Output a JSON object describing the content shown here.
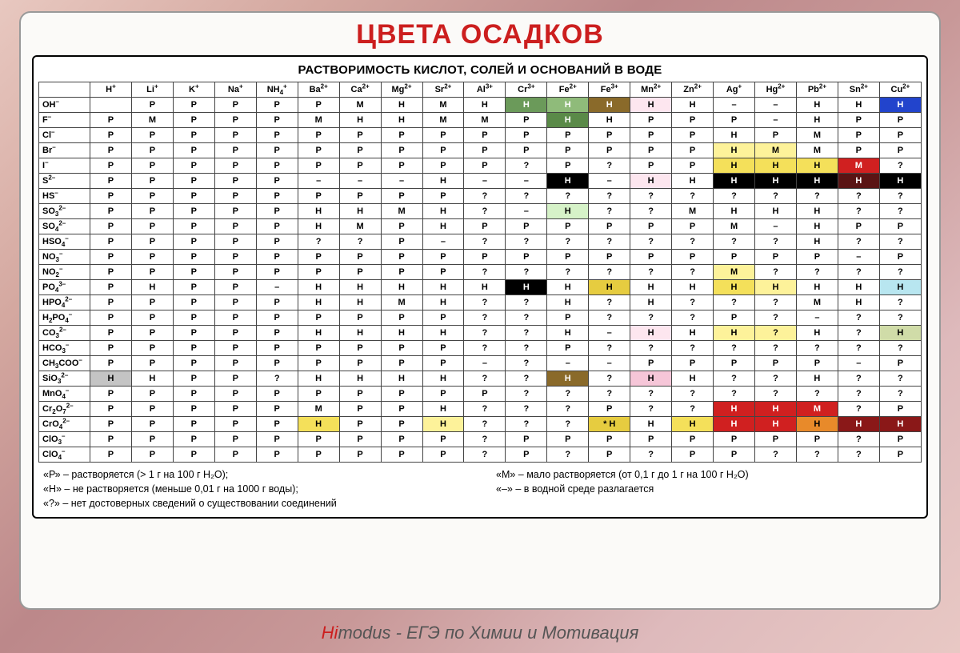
{
  "title": "ЦВЕТА ОСАДКОВ",
  "table_title": "РАСТВОРИМОСТЬ КИСЛОТ, СОЛЕЙ И ОСНОВАНИЙ В ВОДЕ",
  "footer_hi": "Hi",
  "footer_rest": "modus - ЕГЭ по Химии и Мотивация",
  "legend": {
    "left": [
      "«Р» – растворяется (> 1 г на 100 г H₂O);",
      "«Н» – не растворяется (меньше 0,01 г на 1000 г воды);",
      "«?» – нет достоверных сведений о существовании соединений"
    ],
    "right": [
      "«М» – мало растворяется (от 0,1 г до 1 г на 100 г H₂O)",
      "«–» – в водной среде разлагается"
    ]
  },
  "cations": [
    {
      "l": "H",
      "c": "+"
    },
    {
      "l": "Li",
      "c": "+"
    },
    {
      "l": "K",
      "c": "+"
    },
    {
      "l": "Na",
      "c": "+"
    },
    {
      "l": "NH",
      "s": "4",
      "c": "+"
    },
    {
      "l": "Ba",
      "c": "2+"
    },
    {
      "l": "Ca",
      "c": "2+"
    },
    {
      "l": "Mg",
      "c": "2+"
    },
    {
      "l": "Sr",
      "c": "2+"
    },
    {
      "l": "Al",
      "c": "3+"
    },
    {
      "l": "Cr",
      "c": "3+"
    },
    {
      "l": "Fe",
      "c": "2+"
    },
    {
      "l": "Fe",
      "c": "3+"
    },
    {
      "l": "Mn",
      "c": "2+"
    },
    {
      "l": "Zn",
      "c": "2+"
    },
    {
      "l": "Ag",
      "c": "+"
    },
    {
      "l": "Hg",
      "c": "2+"
    },
    {
      "l": "Pb",
      "c": "2+"
    },
    {
      "l": "Sn",
      "c": "2+"
    },
    {
      "l": "Cu",
      "c": "2+"
    }
  ],
  "anions": [
    {
      "l": "OH",
      "c": "–"
    },
    {
      "l": "F",
      "c": "–"
    },
    {
      "l": "Cl",
      "c": "–"
    },
    {
      "l": "Br",
      "c": "–"
    },
    {
      "l": "I",
      "c": "–"
    },
    {
      "l": "S",
      "c": "2–"
    },
    {
      "l": "HS",
      "c": "–"
    },
    {
      "l": "SO",
      "s": "3",
      "c": "2–"
    },
    {
      "l": "SO",
      "s": "4",
      "c": "2–"
    },
    {
      "l": "HSO",
      "s": "4",
      "c": "–"
    },
    {
      "l": "NO",
      "s": "3",
      "c": "–"
    },
    {
      "l": "NO",
      "s": "2",
      "c": "–"
    },
    {
      "l": "PO",
      "s": "4",
      "c": "3–"
    },
    {
      "l": "HPO",
      "s": "4",
      "c": "2–"
    },
    {
      "l": "H",
      "s": "2",
      "l2": "PO",
      "s2": "4",
      "c": "–"
    },
    {
      "l": "CO",
      "s": "3",
      "c": "2–"
    },
    {
      "l": "HCO",
      "s": "3",
      "c": "–"
    },
    {
      "l": "CH",
      "s": "3",
      "l2": "COO",
      "c": "–"
    },
    {
      "l": "SiO",
      "s": "3",
      "c": "2–"
    },
    {
      "l": "MnO",
      "s": "4",
      "c": "–"
    },
    {
      "l": "Cr",
      "s": "2",
      "l2": "O",
      "s2": "7",
      "c": "2–"
    },
    {
      "l": "CrO",
      "s": "4",
      "c": "2–"
    },
    {
      "l": "ClO",
      "s": "3",
      "c": "–"
    },
    {
      "l": "ClO",
      "s": "4",
      "c": "–"
    }
  ],
  "colors": {
    "none": null,
    "gn1": "#6b9a5a",
    "gn2": "#8fbb7a",
    "gn3": "#5a8a48",
    "brn": "#8a6a2a",
    "pnk": "#f6c6d8",
    "lpk": "#fde6ef",
    "blu": "#2244cc",
    "blk": "#000000",
    "wht": "#ffffff",
    "ylw": "#f4e05a",
    "lyl": "#fdf29a",
    "dyl": "#e6cc40",
    "ora": "#e88a2a",
    "red": "#d02020",
    "drd": "#8a1818",
    "mar": "#5a1414",
    "gry": "#c4c4c4",
    "lgn": "#d6f2c8",
    "cyn": "#b8e6f0",
    "lgr": "#d0dca8"
  },
  "cells": [
    [
      [
        ""
      ],
      [
        "Р"
      ],
      [
        "Р"
      ],
      [
        "Р"
      ],
      [
        "Р"
      ],
      [
        "Р"
      ],
      [
        "М"
      ],
      [
        "Н"
      ],
      [
        "М"
      ],
      [
        "Н"
      ],
      [
        "Н",
        "gn1",
        "w"
      ],
      [
        "Н",
        "gn2",
        "w"
      ],
      [
        "Н",
        "brn",
        "w"
      ],
      [
        "Н",
        "lpk"
      ],
      [
        "Н"
      ],
      [
        "–"
      ],
      [
        "–"
      ],
      [
        "Н"
      ],
      [
        "Н"
      ],
      [
        "Н",
        "blu",
        "w"
      ]
    ],
    [
      [
        "Р"
      ],
      [
        "М"
      ],
      [
        "Р"
      ],
      [
        "Р"
      ],
      [
        "Р"
      ],
      [
        "М"
      ],
      [
        "Н"
      ],
      [
        "Н"
      ],
      [
        "М"
      ],
      [
        "М"
      ],
      [
        "Р"
      ],
      [
        "Н",
        "gn3",
        "w"
      ],
      [
        "Н"
      ],
      [
        "Р"
      ],
      [
        "Р"
      ],
      [
        "Р"
      ],
      [
        "–"
      ],
      [
        "Н"
      ],
      [
        "Р"
      ],
      [
        "Р"
      ]
    ],
    [
      [
        "Р"
      ],
      [
        "Р"
      ],
      [
        "Р"
      ],
      [
        "Р"
      ],
      [
        "Р"
      ],
      [
        "Р"
      ],
      [
        "Р"
      ],
      [
        "Р"
      ],
      [
        "Р"
      ],
      [
        "Р"
      ],
      [
        "Р"
      ],
      [
        "Р"
      ],
      [
        "Р"
      ],
      [
        "Р"
      ],
      [
        "Р"
      ],
      [
        "Н"
      ],
      [
        "Р"
      ],
      [
        "М"
      ],
      [
        "Р"
      ],
      [
        "Р"
      ]
    ],
    [
      [
        "Р"
      ],
      [
        "Р"
      ],
      [
        "Р"
      ],
      [
        "Р"
      ],
      [
        "Р"
      ],
      [
        "Р"
      ],
      [
        "Р"
      ],
      [
        "Р"
      ],
      [
        "Р"
      ],
      [
        "Р"
      ],
      [
        "Р"
      ],
      [
        "Р"
      ],
      [
        "Р"
      ],
      [
        "Р"
      ],
      [
        "Р"
      ],
      [
        "Н",
        "lyl"
      ],
      [
        "М",
        "lyl"
      ],
      [
        "М"
      ],
      [
        "Р"
      ],
      [
        "Р"
      ]
    ],
    [
      [
        "Р"
      ],
      [
        "Р"
      ],
      [
        "Р"
      ],
      [
        "Р"
      ],
      [
        "Р"
      ],
      [
        "Р"
      ],
      [
        "Р"
      ],
      [
        "Р"
      ],
      [
        "Р"
      ],
      [
        "Р"
      ],
      [
        "?"
      ],
      [
        "Р"
      ],
      [
        "?"
      ],
      [
        "Р"
      ],
      [
        "Р"
      ],
      [
        "Н",
        "ylw"
      ],
      [
        "Н",
        "ylw"
      ],
      [
        "Н",
        "ylw"
      ],
      [
        "М",
        "red",
        "w"
      ],
      [
        "?"
      ]
    ],
    [
      [
        "Р"
      ],
      [
        "Р"
      ],
      [
        "Р"
      ],
      [
        "Р"
      ],
      [
        "Р"
      ],
      [
        "–"
      ],
      [
        "–"
      ],
      [
        "–"
      ],
      [
        "Н"
      ],
      [
        "–"
      ],
      [
        "–"
      ],
      [
        "Н",
        "blk",
        "w"
      ],
      [
        "–"
      ],
      [
        "Н",
        "lpk"
      ],
      [
        "Н"
      ],
      [
        "Н",
        "blk",
        "w"
      ],
      [
        "Н",
        "blk",
        "w"
      ],
      [
        "Н",
        "blk",
        "w"
      ],
      [
        "Н",
        "mar",
        "w"
      ],
      [
        "Н",
        "blk",
        "w"
      ]
    ],
    [
      [
        "Р"
      ],
      [
        "Р"
      ],
      [
        "Р"
      ],
      [
        "Р"
      ],
      [
        "Р"
      ],
      [
        "Р"
      ],
      [
        "Р"
      ],
      [
        "Р"
      ],
      [
        "Р"
      ],
      [
        "?"
      ],
      [
        "?"
      ],
      [
        "?"
      ],
      [
        "?"
      ],
      [
        "?"
      ],
      [
        "?"
      ],
      [
        "?"
      ],
      [
        "?"
      ],
      [
        "?"
      ],
      [
        "?"
      ],
      [
        "?"
      ]
    ],
    [
      [
        "Р"
      ],
      [
        "Р"
      ],
      [
        "Р"
      ],
      [
        "Р"
      ],
      [
        "Р"
      ],
      [
        "Н"
      ],
      [
        "Н"
      ],
      [
        "М"
      ],
      [
        "Н"
      ],
      [
        "?"
      ],
      [
        "–"
      ],
      [
        "Н",
        "lgn"
      ],
      [
        "?"
      ],
      [
        "?"
      ],
      [
        "М"
      ],
      [
        "Н"
      ],
      [
        "Н"
      ],
      [
        "Н"
      ],
      [
        "?"
      ],
      [
        "?"
      ]
    ],
    [
      [
        "Р"
      ],
      [
        "Р"
      ],
      [
        "Р"
      ],
      [
        "Р"
      ],
      [
        "Р"
      ],
      [
        "Н"
      ],
      [
        "М"
      ],
      [
        "Р"
      ],
      [
        "Н"
      ],
      [
        "Р"
      ],
      [
        "Р"
      ],
      [
        "Р"
      ],
      [
        "Р"
      ],
      [
        "Р"
      ],
      [
        "Р"
      ],
      [
        "М"
      ],
      [
        "–"
      ],
      [
        "Н"
      ],
      [
        "Р"
      ],
      [
        "Р"
      ]
    ],
    [
      [
        "Р"
      ],
      [
        "Р"
      ],
      [
        "Р"
      ],
      [
        "Р"
      ],
      [
        "Р"
      ],
      [
        "?"
      ],
      [
        "?"
      ],
      [
        "Р"
      ],
      [
        "–"
      ],
      [
        "?"
      ],
      [
        "?"
      ],
      [
        "?"
      ],
      [
        "?"
      ],
      [
        "?"
      ],
      [
        "?"
      ],
      [
        "?"
      ],
      [
        "?"
      ],
      [
        "Н"
      ],
      [
        "?"
      ],
      [
        "?"
      ]
    ],
    [
      [
        "Р"
      ],
      [
        "Р"
      ],
      [
        "Р"
      ],
      [
        "Р"
      ],
      [
        "Р"
      ],
      [
        "Р"
      ],
      [
        "Р"
      ],
      [
        "Р"
      ],
      [
        "Р"
      ],
      [
        "Р"
      ],
      [
        "Р"
      ],
      [
        "Р"
      ],
      [
        "Р"
      ],
      [
        "Р"
      ],
      [
        "Р"
      ],
      [
        "Р"
      ],
      [
        "Р"
      ],
      [
        "Р"
      ],
      [
        "–"
      ],
      [
        "Р"
      ]
    ],
    [
      [
        "Р"
      ],
      [
        "Р"
      ],
      [
        "Р"
      ],
      [
        "Р"
      ],
      [
        "Р"
      ],
      [
        "Р"
      ],
      [
        "Р"
      ],
      [
        "Р"
      ],
      [
        "Р"
      ],
      [
        "?"
      ],
      [
        "?"
      ],
      [
        "?"
      ],
      [
        "?"
      ],
      [
        "?"
      ],
      [
        "?"
      ],
      [
        "М",
        "lyl"
      ],
      [
        "?"
      ],
      [
        "?"
      ],
      [
        "?"
      ],
      [
        "?"
      ]
    ],
    [
      [
        "Р"
      ],
      [
        "Н"
      ],
      [
        "Р"
      ],
      [
        "Р"
      ],
      [
        "–"
      ],
      [
        "Н"
      ],
      [
        "Н"
      ],
      [
        "Н"
      ],
      [
        "Н"
      ],
      [
        "Н"
      ],
      [
        "Н",
        "blk",
        "w"
      ],
      [
        "Н"
      ],
      [
        "Н",
        "dyl"
      ],
      [
        "Н"
      ],
      [
        "Н"
      ],
      [
        "Н",
        "ylw"
      ],
      [
        "Н",
        "lyl"
      ],
      [
        "Н"
      ],
      [
        "Н"
      ],
      [
        "Н",
        "cyn"
      ]
    ],
    [
      [
        "Р"
      ],
      [
        "Р"
      ],
      [
        "Р"
      ],
      [
        "Р"
      ],
      [
        "Р"
      ],
      [
        "Н"
      ],
      [
        "Н"
      ],
      [
        "М"
      ],
      [
        "Н"
      ],
      [
        "?"
      ],
      [
        "?"
      ],
      [
        "Н"
      ],
      [
        "?"
      ],
      [
        "Н"
      ],
      [
        "?"
      ],
      [
        "?"
      ],
      [
        "?"
      ],
      [
        "М"
      ],
      [
        "Н"
      ],
      [
        "?"
      ]
    ],
    [
      [
        "Р"
      ],
      [
        "Р"
      ],
      [
        "Р"
      ],
      [
        "Р"
      ],
      [
        "Р"
      ],
      [
        "Р"
      ],
      [
        "Р"
      ],
      [
        "Р"
      ],
      [
        "Р"
      ],
      [
        "?"
      ],
      [
        "?"
      ],
      [
        "Р"
      ],
      [
        "?"
      ],
      [
        "?"
      ],
      [
        "?"
      ],
      [
        "Р"
      ],
      [
        "?"
      ],
      [
        "–"
      ],
      [
        "?"
      ],
      [
        "?"
      ]
    ],
    [
      [
        "Р"
      ],
      [
        "Р"
      ],
      [
        "Р"
      ],
      [
        "Р"
      ],
      [
        "Р"
      ],
      [
        "Н"
      ],
      [
        "Н"
      ],
      [
        "Н"
      ],
      [
        "Н"
      ],
      [
        "?"
      ],
      [
        "?"
      ],
      [
        "Н"
      ],
      [
        "–"
      ],
      [
        "Н",
        "lpk"
      ],
      [
        "Н"
      ],
      [
        "Н",
        "lyl"
      ],
      [
        "?",
        "lyl"
      ],
      [
        "Н"
      ],
      [
        "?"
      ],
      [
        "Н",
        "lgr"
      ]
    ],
    [
      [
        "Р"
      ],
      [
        "Р"
      ],
      [
        "Р"
      ],
      [
        "Р"
      ],
      [
        "Р"
      ],
      [
        "Р"
      ],
      [
        "Р"
      ],
      [
        "Р"
      ],
      [
        "Р"
      ],
      [
        "?"
      ],
      [
        "?"
      ],
      [
        "Р"
      ],
      [
        "?"
      ],
      [
        "?"
      ],
      [
        "?"
      ],
      [
        "?"
      ],
      [
        "?"
      ],
      [
        "?"
      ],
      [
        "?"
      ],
      [
        "?"
      ]
    ],
    [
      [
        "Р"
      ],
      [
        "Р"
      ],
      [
        "Р"
      ],
      [
        "Р"
      ],
      [
        "Р"
      ],
      [
        "Р"
      ],
      [
        "Р"
      ],
      [
        "Р"
      ],
      [
        "Р"
      ],
      [
        "–"
      ],
      [
        "?"
      ],
      [
        "–"
      ],
      [
        "–"
      ],
      [
        "Р"
      ],
      [
        "Р"
      ],
      [
        "Р"
      ],
      [
        "Р"
      ],
      [
        "Р"
      ],
      [
        "–"
      ],
      [
        "Р"
      ]
    ],
    [
      [
        "Н",
        "gry"
      ],
      [
        "Н"
      ],
      [
        "Р"
      ],
      [
        "Р"
      ],
      [
        "?"
      ],
      [
        "Н"
      ],
      [
        "Н"
      ],
      [
        "Н"
      ],
      [
        "Н"
      ],
      [
        "?"
      ],
      [
        "?"
      ],
      [
        "Н",
        "brn",
        "w"
      ],
      [
        "?"
      ],
      [
        "Н",
        "pnk"
      ],
      [
        "Н"
      ],
      [
        "?"
      ],
      [
        "?"
      ],
      [
        "Н"
      ],
      [
        "?"
      ],
      [
        "?"
      ]
    ],
    [
      [
        "Р"
      ],
      [
        "Р"
      ],
      [
        "Р"
      ],
      [
        "Р"
      ],
      [
        "Р"
      ],
      [
        "Р"
      ],
      [
        "Р"
      ],
      [
        "Р"
      ],
      [
        "Р"
      ],
      [
        "Р"
      ],
      [
        "?"
      ],
      [
        "?"
      ],
      [
        "?"
      ],
      [
        "?"
      ],
      [
        "?"
      ],
      [
        "?"
      ],
      [
        "?"
      ],
      [
        "?"
      ],
      [
        "?"
      ],
      [
        "?"
      ]
    ],
    [
      [
        "Р"
      ],
      [
        "Р"
      ],
      [
        "Р"
      ],
      [
        "Р"
      ],
      [
        "Р"
      ],
      [
        "М"
      ],
      [
        "Р"
      ],
      [
        "Р"
      ],
      [
        "Н"
      ],
      [
        "?"
      ],
      [
        "?"
      ],
      [
        "?"
      ],
      [
        "Р"
      ],
      [
        "?"
      ],
      [
        "?"
      ],
      [
        "Н",
        "red",
        "w"
      ],
      [
        "Н",
        "red",
        "w"
      ],
      [
        "М",
        "red",
        "w"
      ],
      [
        "?"
      ],
      [
        "Р"
      ]
    ],
    [
      [
        "Р"
      ],
      [
        "Р"
      ],
      [
        "Р"
      ],
      [
        "Р"
      ],
      [
        "Р"
      ],
      [
        "Н",
        "ylw"
      ],
      [
        "Р"
      ],
      [
        "Р"
      ],
      [
        "Н",
        "lyl"
      ],
      [
        "?"
      ],
      [
        "?"
      ],
      [
        "?"
      ],
      [
        "* Н",
        "dyl"
      ],
      [
        "Н"
      ],
      [
        "Н",
        "ylw"
      ],
      [
        "Н",
        "red",
        "w"
      ],
      [
        "Н",
        "red",
        "w"
      ],
      [
        "Н",
        "ora"
      ],
      [
        "Н",
        "drd",
        "w"
      ],
      [
        "Н",
        "drd",
        "w"
      ]
    ],
    [
      [
        "Р"
      ],
      [
        "Р"
      ],
      [
        "Р"
      ],
      [
        "Р"
      ],
      [
        "Р"
      ],
      [
        "Р"
      ],
      [
        "Р"
      ],
      [
        "Р"
      ],
      [
        "Р"
      ],
      [
        "?"
      ],
      [
        "Р"
      ],
      [
        "Р"
      ],
      [
        "Р"
      ],
      [
        "Р"
      ],
      [
        "Р"
      ],
      [
        "Р"
      ],
      [
        "Р"
      ],
      [
        "Р"
      ],
      [
        "?"
      ],
      [
        "Р"
      ]
    ],
    [
      [
        "Р"
      ],
      [
        "Р"
      ],
      [
        "Р"
      ],
      [
        "Р"
      ],
      [
        "Р"
      ],
      [
        "Р"
      ],
      [
        "Р"
      ],
      [
        "Р"
      ],
      [
        "Р"
      ],
      [
        "?"
      ],
      [
        "Р"
      ],
      [
        "?"
      ],
      [
        "Р"
      ],
      [
        "?"
      ],
      [
        "Р"
      ],
      [
        "Р"
      ],
      [
        "?"
      ],
      [
        "?"
      ],
      [
        "?"
      ],
      [
        "Р"
      ]
    ]
  ]
}
